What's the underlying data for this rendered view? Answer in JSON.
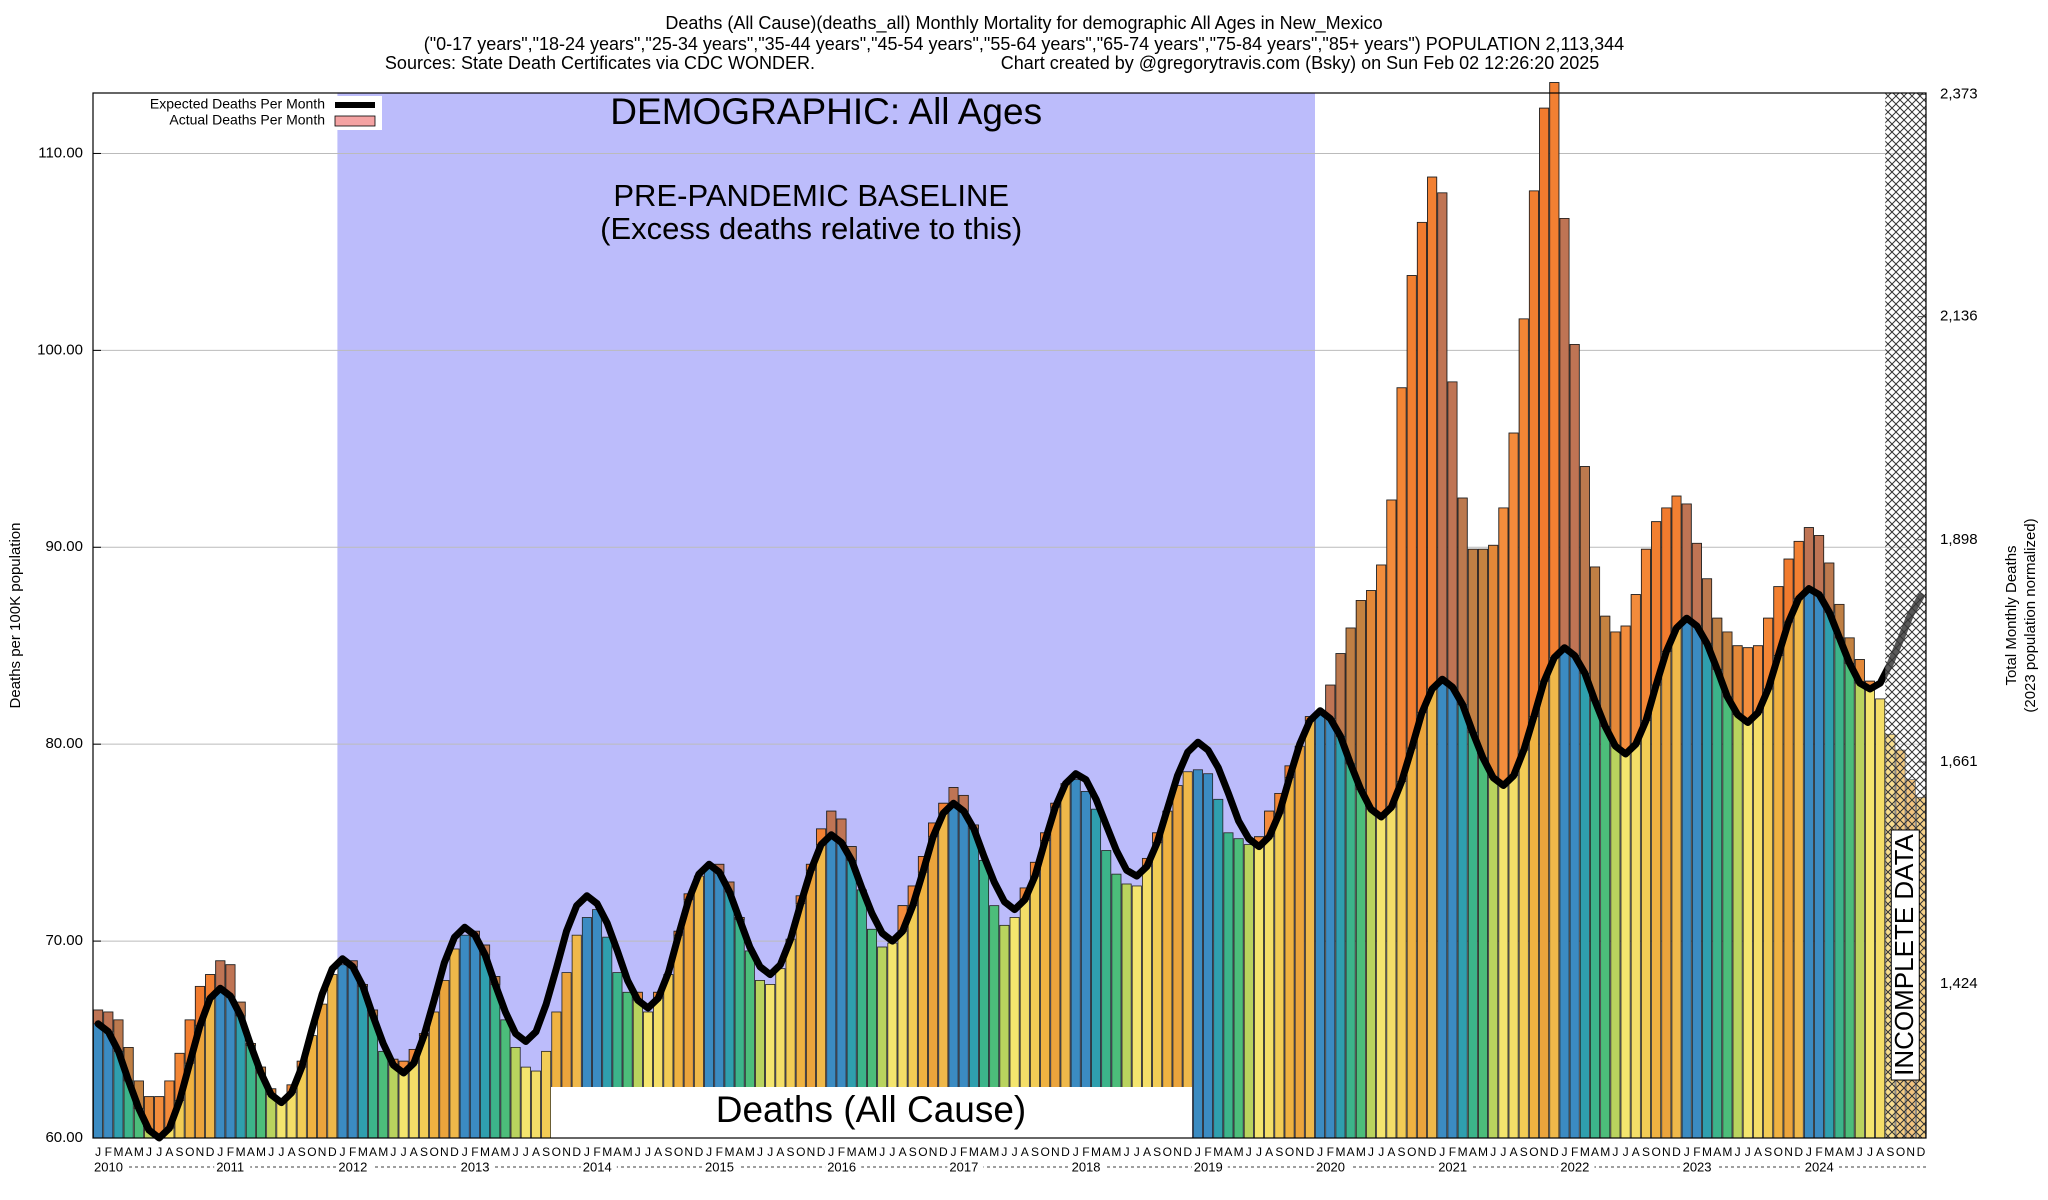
{
  "chart_data": {
    "type": "bar",
    "title": "Deaths (All Cause)(deaths_all) Monthly Mortality for demographic All Ages in New_Mexico",
    "subtitle": "(\"0-17 years\",\"18-24 years\",\"25-34 years\",\"35-44 years\",\"45-54 years\",\"55-64 years\",\"65-74 years\",\"75-84 years\",\"85+ years\") POPULATION 2,113,344",
    "source": "Sources: State Death Certificates via CDC WONDER.",
    "credit": "Chart created by @gregorytravis.com (Bsky) on Sun Feb 02 12:26:20 2025",
    "annotations": {
      "demographic": "DEMOGRAPHIC: All Ages",
      "baseline": "PRE-PANDEMIC BASELINE",
      "baseline_note": "(Excess deaths relative to this)",
      "cause": "Deaths (All Cause)",
      "incomplete": "INCOMPLETE DATA"
    },
    "y_label": "Deaths per 100K population",
    "y2_label": [
      "Total Monthly Deaths",
      "(2023 population normalized)"
    ],
    "categories": [
      "J",
      "F",
      "M",
      "A",
      "M",
      "J",
      "J",
      "A",
      "S",
      "O",
      "N",
      "D",
      "J",
      "F",
      "M",
      "A",
      "M",
      "J",
      "J",
      "A",
      "S",
      "O",
      "N",
      "D",
      "J",
      "F",
      "M",
      "A",
      "M",
      "J",
      "J",
      "A",
      "S",
      "O",
      "N",
      "D",
      "J",
      "F",
      "M",
      "A",
      "M",
      "J",
      "J",
      "A",
      "S",
      "O",
      "N",
      "D",
      "J",
      "F",
      "M",
      "A",
      "M",
      "J",
      "J",
      "A",
      "S",
      "O",
      "N",
      "D",
      "J",
      "F",
      "M",
      "A",
      "M",
      "J",
      "J",
      "A",
      "S",
      "O",
      "N",
      "D",
      "J",
      "F",
      "M",
      "A",
      "M",
      "J",
      "J",
      "A",
      "S",
      "O",
      "N",
      "D",
      "J",
      "F",
      "M",
      "A",
      "M",
      "J",
      "J",
      "A",
      "S",
      "O",
      "N",
      "D",
      "J",
      "F",
      "M",
      "A",
      "M",
      "J",
      "J",
      "A",
      "S",
      "O",
      "N",
      "D",
      "J",
      "F",
      "M",
      "A",
      "M",
      "J",
      "J",
      "A",
      "S",
      "O",
      "N",
      "D",
      "J",
      "F",
      "M",
      "A",
      "M",
      "J",
      "J",
      "A",
      "S",
      "O",
      "N",
      "D",
      "J",
      "F",
      "M",
      "A",
      "M",
      "J",
      "J",
      "A",
      "S",
      "O",
      "N",
      "D",
      "J",
      "F",
      "M",
      "A",
      "M",
      "J",
      "J",
      "A",
      "S",
      "O",
      "N",
      "D",
      "J",
      "F",
      "M",
      "A",
      "M",
      "J",
      "J",
      "A",
      "S",
      "O",
      "N",
      "D",
      "J",
      "F",
      "M",
      "A",
      "M",
      "J",
      "J",
      "A",
      "S",
      "O",
      "N",
      "D"
    ],
    "years": [
      "2010",
      "2011",
      "2012",
      "2013",
      "2014",
      "2015",
      "2016",
      "2017",
      "2018",
      "2019",
      "2020",
      "2021",
      "2022",
      "2023",
      "2024"
    ],
    "series": [
      {
        "name": "Actual Deaths Per Month",
        "color": "#f4a3a3",
        "values": [
          66.5,
          66.4,
          66.0,
          64.6,
          62.9,
          62.1,
          62.1,
          62.9,
          64.3,
          66.0,
          67.7,
          68.3,
          69.0,
          68.8,
          66.9,
          64.8,
          63.6,
          62.5,
          61.9,
          62.7,
          63.9,
          65.2,
          66.8,
          68.3,
          68.8,
          69.0,
          67.8,
          66.5,
          64.4,
          64.0,
          63.9,
          64.5,
          65.3,
          66.4,
          68.0,
          69.6,
          70.3,
          70.5,
          69.8,
          68.2,
          66.0,
          64.6,
          63.6,
          63.4,
          64.4,
          66.4,
          68.4,
          70.3,
          71.2,
          71.6,
          70.2,
          68.4,
          67.4,
          67.4,
          66.4,
          67.4,
          68.3,
          70.5,
          72.4,
          73.3,
          73.8,
          73.9,
          73.0,
          71.2,
          69.5,
          68.0,
          67.8,
          68.6,
          70.1,
          72.3,
          73.9,
          75.7,
          76.6,
          76.2,
          74.8,
          72.6,
          70.6,
          69.7,
          69.9,
          71.8,
          72.8,
          74.3,
          76.0,
          77.0,
          77.8,
          77.4,
          75.9,
          74.1,
          71.8,
          70.8,
          71.2,
          72.7,
          74.0,
          75.5,
          77.0,
          78.0,
          78.2,
          77.6,
          76.7,
          74.6,
          73.4,
          72.9,
          72.8,
          74.2,
          75.5,
          76.6,
          77.9,
          78.6,
          78.7,
          78.5,
          77.2,
          75.5,
          75.2,
          74.9,
          75.3,
          76.6,
          77.5,
          78.9,
          79.9,
          81.4,
          81.6,
          83.0,
          84.6,
          85.9,
          87.3,
          87.8,
          89.1,
          92.4,
          98.1,
          103.8,
          106.5,
          108.8,
          108.0,
          98.4,
          92.5,
          89.9,
          89.9,
          90.1,
          92.0,
          95.8,
          101.6,
          108.1,
          112.3,
          113.6,
          106.7,
          100.3,
          94.1,
          89.0,
          86.5,
          85.7,
          86.0,
          87.6,
          89.9,
          91.3,
          92.0,
          92.6,
          92.2,
          90.2,
          88.4,
          86.4,
          85.7,
          85.0,
          84.9,
          85.0,
          86.4,
          88.0,
          89.4,
          90.3,
          91.0,
          90.6,
          89.2,
          87.1,
          85.4,
          84.3,
          83.2,
          82.3,
          80.5,
          79.7,
          78.2,
          77.3
        ]
      },
      {
        "name": "Expected Deaths Per Month",
        "color": "#000000",
        "values": [
          65.8,
          65.4,
          64.4,
          62.9,
          61.5,
          60.4,
          60.0,
          60.5,
          61.9,
          63.8,
          65.7,
          67.1,
          67.6,
          67.2,
          66.2,
          64.7,
          63.3,
          62.2,
          61.8,
          62.3,
          63.6,
          65.5,
          67.3,
          68.6,
          69.1,
          68.7,
          67.7,
          66.2,
          64.8,
          63.7,
          63.3,
          63.8,
          65.2,
          67.0,
          68.9,
          70.2,
          70.7,
          70.3,
          69.3,
          67.8,
          66.4,
          65.3,
          64.9,
          65.4,
          66.8,
          68.6,
          70.5,
          71.8,
          72.3,
          71.9,
          70.9,
          69.5,
          68.0,
          67.0,
          66.6,
          67.1,
          68.4,
          70.3,
          72.1,
          73.4,
          73.9,
          73.5,
          72.5,
          71.1,
          69.7,
          68.7,
          68.3,
          68.8,
          70.1,
          71.9,
          73.6,
          74.9,
          75.4,
          75.0,
          74.1,
          72.7,
          71.4,
          70.4,
          70.0,
          70.5,
          71.8,
          73.5,
          75.3,
          76.5,
          77.0,
          76.6,
          75.7,
          74.3,
          73.0,
          72.0,
          71.6,
          72.1,
          73.3,
          75.1,
          76.8,
          78.0,
          78.5,
          78.2,
          77.2,
          75.9,
          74.6,
          73.6,
          73.3,
          73.8,
          75.0,
          76.7,
          78.4,
          79.6,
          80.1,
          79.7,
          78.8,
          77.5,
          76.1,
          75.2,
          74.8,
          75.3,
          76.5,
          78.3,
          80.0,
          81.2,
          81.7,
          81.3,
          80.4,
          79.0,
          77.7,
          76.7,
          76.3,
          76.8,
          78.1,
          79.8,
          81.6,
          82.8,
          83.3,
          82.9,
          82.0,
          80.6,
          79.3,
          78.3,
          77.9,
          78.4,
          79.7,
          81.4,
          83.2,
          84.4,
          84.9,
          84.5,
          83.6,
          82.2,
          80.9,
          79.9,
          79.5,
          80.0,
          81.2,
          83.0,
          84.7,
          85.9,
          86.4,
          86.0,
          85.1,
          83.8,
          82.4,
          81.5,
          81.1,
          81.6,
          82.8,
          84.5,
          86.2,
          87.4,
          87.9,
          87.6,
          86.7,
          85.4,
          84.1,
          83.1,
          82.8,
          83.1,
          84.1,
          85.3,
          86.6,
          87.5
        ]
      }
    ],
    "month_colors": [
      "#3b8bc2",
      "#3b8bc2",
      "#2f9fae",
      "#3cb48a",
      "#4cbd7a",
      "#b9d35e",
      "#f4e56e",
      "#f4de68",
      "#f2cc55",
      "#efb241",
      "#eba43c",
      "#efb84a"
    ],
    "excess_color": "#f26b2a",
    "baseline_color": "#bcbcfb",
    "ylim": [
      60,
      113.07
    ],
    "yticks": [
      {
        "value": 60,
        "label": "60.00"
      },
      {
        "value": 70,
        "label": "70.00"
      },
      {
        "value": 80,
        "label": "80.00"
      },
      {
        "value": 90,
        "label": "90.00"
      },
      {
        "value": 100,
        "label": "100.00"
      },
      {
        "value": 110,
        "label": "110.00"
      }
    ],
    "y2lim": [
      1260,
      2374.5
    ],
    "y2ticks": [
      {
        "value": 1424,
        "label": "1,424"
      },
      {
        "value": 1661,
        "label": "1,661"
      },
      {
        "value": 1898,
        "label": "1,898"
      },
      {
        "value": 2136,
        "label": "2,136"
      },
      {
        "value": 2373,
        "label": "2,373"
      }
    ],
    "grid": true,
    "legend": "top-left"
  }
}
